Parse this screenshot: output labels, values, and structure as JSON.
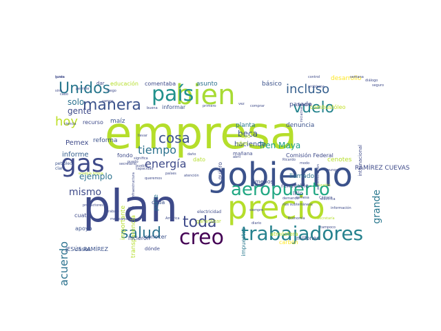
{
  "words": [
    {
      "text": "empresa",
      "color": "#b5de2b",
      "size": 64,
      "rot": 0
    },
    {
      "text": "plan",
      "color": "#3e4a89",
      "size": 64,
      "rot": 0
    },
    {
      "text": "gobierno",
      "color": "#3b528b",
      "size": 48,
      "rot": 0
    },
    {
      "text": "precio",
      "color": "#b5de2b",
      "size": 46,
      "rot": 0
    },
    {
      "text": "bien",
      "color": "#a8db34",
      "size": 40,
      "rot": 0
    },
    {
      "text": "gas",
      "color": "#3e4a89",
      "size": 36,
      "rot": 0
    },
    {
      "text": "país",
      "color": "#21918c",
      "size": 30,
      "rot": 0
    },
    {
      "text": "creo",
      "color": "#440154",
      "size": 30,
      "rot": 0
    },
    {
      "text": "trabajadores",
      "color": "#26828e",
      "size": 28,
      "rot": 0
    },
    {
      "text": "aeropuerto",
      "color": "#22a884",
      "size": 26,
      "rot": 0
    },
    {
      "text": "Unidos",
      "color": "#2a788e",
      "size": 22,
      "rot": 0
    },
    {
      "text": "manera",
      "color": "#3b528b",
      "size": 22,
      "rot": 0
    },
    {
      "text": "vuelo",
      "color": "#25848e",
      "size": 22,
      "rot": 0
    },
    {
      "text": "incluso",
      "color": "#355f8d",
      "size": 18,
      "rot": 0
    },
    {
      "text": "salud",
      "color": "#2c728e",
      "size": 22,
      "rot": 0
    },
    {
      "text": "toda",
      "color": "#3e4a89",
      "size": 22,
      "rot": 0
    },
    {
      "text": "hoy",
      "color": "#bddf26",
      "size": 18,
      "rot": 0
    },
    {
      "text": "cosa",
      "color": "#3b528b",
      "size": 20,
      "rot": 0
    },
    {
      "text": "energía",
      "color": "#3e4a89",
      "size": 16,
      "rot": 0
    },
    {
      "text": "tiempo",
      "color": "#2c728e",
      "size": 16,
      "rot": 0
    },
    {
      "text": "acuerdo",
      "color": "#2c728e",
      "size": 16,
      "rot": -90
    },
    {
      "text": "mismo",
      "color": "#3e4a89",
      "size": 14,
      "rot": 0
    },
    {
      "text": "grande",
      "color": "#2a788e",
      "size": 14,
      "rot": -90
    },
    {
      "text": "Tren Maya",
      "color": "#1f9e89",
      "size": 12,
      "rot": 0
    },
    {
      "text": "ejemplo",
      "color": "#2c728e",
      "size": 12,
      "rot": 0
    },
    {
      "text": "gente",
      "color": "#3e4a89",
      "size": 12,
      "rot": 0
    },
    {
      "text": "solo",
      "color": "#2c728e",
      "size": 12,
      "rot": 0
    },
    {
      "text": "beca",
      "color": "#3b528b",
      "size": 12,
      "rot": 0
    },
    {
      "text": "Pemex",
      "color": "#3e4a89",
      "size": 10,
      "rot": 0
    },
    {
      "text": "informe",
      "color": "#355f8d",
      "size": 10,
      "rot": 0
    },
    {
      "text": "haciendo",
      "color": "#3b528b",
      "size": 10,
      "rot": 0
    },
    {
      "text": "denuncia",
      "color": "#3b528b",
      "size": 9,
      "rot": 0
    },
    {
      "text": "planta",
      "color": "#2a788e",
      "size": 9,
      "rot": 0
    },
    {
      "text": "pasado",
      "color": "#3e4a89",
      "size": 9,
      "rot": 0
    },
    {
      "text": "básico",
      "color": "#3b528b",
      "size": 9,
      "rot": 0
    },
    {
      "text": "asunto",
      "color": "#2c728e",
      "size": 9,
      "rot": 0
    },
    {
      "text": "comentaba",
      "color": "#3e4a89",
      "size": 8,
      "rot": 0
    },
    {
      "text": "educación",
      "color": "#b5de2b",
      "size": 8,
      "rot": 0
    },
    {
      "text": "informar",
      "color": "#3b528b",
      "size": 8,
      "rot": 0
    },
    {
      "text": "desarrollo",
      "color": "#fde725",
      "size": 9,
      "rot": 0
    },
    {
      "text": "combustóleo",
      "color": "#c2df23",
      "size": 8,
      "rot": 0
    },
    {
      "text": "Comisión Federal",
      "color": "#3e4a89",
      "size": 8,
      "rot": 0
    },
    {
      "text": "JESÚS RAMÍREZ",
      "color": "#3b528b",
      "size": 8,
      "rot": 0
    },
    {
      "text": "RAMÍREZ CUEVAS",
      "color": "#3e4a89",
      "size": 9,
      "rot": 0
    },
    {
      "text": "cenotes",
      "color": "#b5de2b",
      "size": 9,
      "rot": 0
    },
    {
      "text": "maíz",
      "color": "#3b528b",
      "size": 9,
      "rot": 0
    },
    {
      "text": "reforma",
      "color": "#3b528b",
      "size": 9,
      "rot": 0
    },
    {
      "text": "recurso",
      "color": "#3e4a89",
      "size": 8,
      "rot": 0
    },
    {
      "text": "fondo",
      "color": "#3e4a89",
      "size": 8,
      "rot": 0
    },
    {
      "text": "cada",
      "color": "#3b528b",
      "size": 8,
      "rot": 0
    },
    {
      "text": "menos",
      "color": "#3e4a89",
      "size": 8,
      "rot": 0
    },
    {
      "text": "renovable",
      "color": "#3e4a89",
      "size": 8,
      "rot": 0
    },
    {
      "text": "llamado",
      "color": "#2c728e",
      "size": 9,
      "rot": 0
    },
    {
      "text": "litio",
      "color": "#3e4a89",
      "size": 8,
      "rot": 0
    },
    {
      "text": "dato",
      "color": "#b5de2b",
      "size": 8,
      "rot": 0
    },
    {
      "text": "importante",
      "color": "#b5de2b",
      "size": 9,
      "rot": -90
    },
    {
      "text": "transparencia",
      "color": "#b5de2b",
      "size": 9,
      "rot": -90
    },
    {
      "text": "parte",
      "color": "#2c728e",
      "size": 9,
      "rot": -90
    },
    {
      "text": "quiero",
      "color": "#3e4a89",
      "size": 8,
      "rot": -90
    },
    {
      "text": "internacional",
      "color": "#3e4a89",
      "size": 7,
      "rot": -90
    },
    {
      "text": "impuestos",
      "color": "#2a788e",
      "size": 8,
      "rot": -90
    },
    {
      "text": "carbón",
      "color": "#fde725",
      "size": 8,
      "rot": 0
    },
    {
      "text": "millones",
      "color": "#3b528b",
      "size": 8,
      "rot": 0
    },
    {
      "text": "atmósfera",
      "color": "#b5de2b",
      "size": 8,
      "rot": 0
    },
    {
      "text": "hicieron",
      "color": "#3e4a89",
      "size": 8,
      "rot": 0
    },
    {
      "text": "conocer",
      "color": "#3b528b",
      "size": 8,
      "rot": 0
    },
    {
      "text": "dónde",
      "color": "#3e4a89",
      "size": 7,
      "rot": 0
    },
    {
      "text": "apoyo",
      "color": "#3b528b",
      "size": 8,
      "rot": 0
    },
    {
      "text": "casos",
      "color": "#3b528b",
      "size": 8,
      "rot": 0
    },
    {
      "text": "cuatro",
      "color": "#3e4a89",
      "size": 8,
      "rot": 0
    },
    {
      "text": "electricidad",
      "color": "#3e4a89",
      "size": 6,
      "rot": 0
    },
    {
      "text": "garantizar",
      "color": "#b5de2b",
      "size": 7,
      "rot": 0
    },
    {
      "text": "mañana",
      "color": "#3e4a89",
      "size": 7,
      "rot": 0
    },
    {
      "text": "tipo",
      "color": "#b5de2b",
      "size": 7,
      "rot": 0
    },
    {
      "text": "años",
      "color": "#b5de2b",
      "size": 7,
      "rot": 0
    },
    {
      "text": "ir",
      "color": "#3e4a89",
      "size": 7,
      "rot": 0
    },
    {
      "text": "petróleo",
      "color": "#3b528b",
      "size": 6,
      "rot": 0
    },
    {
      "text": "dar",
      "color": "#3e4a89",
      "size": 7,
      "rot": 0
    },
    {
      "text": "claro",
      "color": "#3b528b",
      "size": 6,
      "rot": 0
    },
    {
      "text": "abril",
      "color": "#3e4a89",
      "size": 5,
      "rot": 0
    },
    {
      "text": "Ricardo",
      "color": "#3e4a89",
      "size": 5,
      "rot": 0
    },
    {
      "text": "Yucatán",
      "color": "#b5de2b",
      "size": 5,
      "rot": 0
    },
    {
      "text": "ríos subterráneos",
      "color": "#3e4a89",
      "size": 5,
      "rot": 0
    },
    {
      "text": "eléctrica",
      "color": "#3e4a89",
      "size": 5,
      "rot": 0
    },
    {
      "text": "diario",
      "color": "#3e4a89",
      "size": 5,
      "rot": 0
    },
    {
      "text": "siempre",
      "color": "#3e4a89",
      "size": 5,
      "rot": 0
    },
    {
      "text": "Economía",
      "color": "#3e4a89",
      "size": 5,
      "rot": 0
    },
    {
      "text": "Secretaría",
      "color": "#b5de2b",
      "size": 5,
      "rot": 0
    },
    {
      "text": "información",
      "color": "#3e4a89",
      "size": 5,
      "rot": 0
    },
    {
      "text": "remesa",
      "color": "#3e4a89",
      "size": 5,
      "rot": 0
    },
    {
      "text": "tampoco",
      "color": "#3e4a89",
      "size": 5,
      "rot": 0
    },
    {
      "text": "demanda",
      "color": "#3e4a89",
      "size": 5,
      "rot": 0
    },
    {
      "text": "control",
      "color": "#3e4a89",
      "size": 5,
      "rot": 0
    },
    {
      "text": "semana",
      "color": "#3e4a89",
      "size": 5,
      "rot": 0
    },
    {
      "text": "problema",
      "color": "#3e4a89",
      "size": 5,
      "rot": 0
    },
    {
      "text": "diálogo",
      "color": "#3e4a89",
      "size": 5,
      "rot": 0
    },
    {
      "text": "servicio",
      "color": "#3e4a89",
      "size": 5,
      "rot": 0
    },
    {
      "text": "Cámara",
      "color": "#3e4a89",
      "size": 5,
      "rot": 0
    },
    {
      "text": "aunque",
      "color": "#3e4a89",
      "size": 5,
      "rot": 0
    },
    {
      "text": "daño",
      "color": "#3e4a89",
      "size": 5,
      "rot": 0
    },
    {
      "text": "atención",
      "color": "#3e4a89",
      "size": 5,
      "rot": 0
    },
    {
      "text": "países",
      "color": "#3e4a89",
      "size": 5,
      "rot": 0
    },
    {
      "text": "queremos",
      "color": "#3e4a89",
      "size": 5,
      "rot": 0
    },
    {
      "text": "pueblo",
      "color": "#3e4a89",
      "size": 5,
      "rot": 0
    },
    {
      "text": "capacidad",
      "color": "#3e4a89",
      "size": 5,
      "rot": 0
    },
    {
      "text": "secretario",
      "color": "#3e4a89",
      "size": 5,
      "rot": 0
    },
    {
      "text": "energía limpia",
      "color": "#b5de2b",
      "size": 5,
      "rot": 0
    },
    {
      "text": "iniciativa",
      "color": "#3e4a89",
      "size": 5,
      "rot": -90
    },
    {
      "text": "administración",
      "color": "#3e4a89",
      "size": 5,
      "rot": -90
    },
    {
      "text": "infraestructura",
      "color": "#3e4a89",
      "size": 5,
      "rot": -90
    },
    {
      "text": "significa",
      "color": "#3e4a89",
      "size": 5,
      "rot": 0
    },
    {
      "text": "llevar",
      "color": "#3e4a89",
      "size": 5,
      "rot": 0
    },
    {
      "text": "salir",
      "color": "#3e4a89",
      "size": 5,
      "rot": 0
    },
    {
      "text": "mexicanos",
      "color": "#3e4a89",
      "size": 5,
      "rot": 0
    },
    {
      "text": "trabajo",
      "color": "#3e4a89",
      "size": 5,
      "rot": 0
    },
    {
      "text": "primero",
      "color": "#3e4a89",
      "size": 5,
      "rot": 0
    },
    {
      "text": "comprar",
      "color": "#3e4a89",
      "size": 5,
      "rot": 0
    },
    {
      "text": "vez",
      "color": "#3e4a89",
      "size": 5,
      "rot": 0
    },
    {
      "text": "sino",
      "color": "#3e4a89",
      "size": 5,
      "rot": 0
    },
    {
      "text": "luego",
      "color": "#3e4a89",
      "size": 5,
      "rot": 0
    },
    {
      "text": "buena",
      "color": "#3e4a89",
      "size": 5,
      "rot": 0
    },
    {
      "text": "seguro",
      "color": "#3e4a89",
      "size": 5,
      "rot": 0
    },
    {
      "text": "productores",
      "color": "#3e4a89",
      "size": 5,
      "rot": 0
    },
    {
      "text": "América",
      "color": "#3e4a89",
      "size": 5,
      "rot": 0
    },
    {
      "text": "permite",
      "color": "#3e4a89",
      "size": 5,
      "rot": 0
    },
    {
      "text": "puedo",
      "color": "#3e4a89",
      "size": 5,
      "rot": 0
    },
    {
      "text": "ciencia",
      "color": "#3e4a89",
      "size": 5,
      "rot": 0
    },
    {
      "text": "vamos",
      "color": "#3e4a89",
      "size": 5,
      "rot": 0
    },
    {
      "text": "cabo",
      "color": "#3e4a89",
      "size": 5,
      "rot": 0
    },
    {
      "text": "modo",
      "color": "#3e4a89",
      "size": 5,
      "rot": 0
    },
    {
      "text": "gusta",
      "color": "#3e4a89",
      "size": 5,
      "rot": 0
    },
    {
      "text": "lunes",
      "color": "#3e4a89",
      "size": 5,
      "rot": 0
    }
  ]
}
